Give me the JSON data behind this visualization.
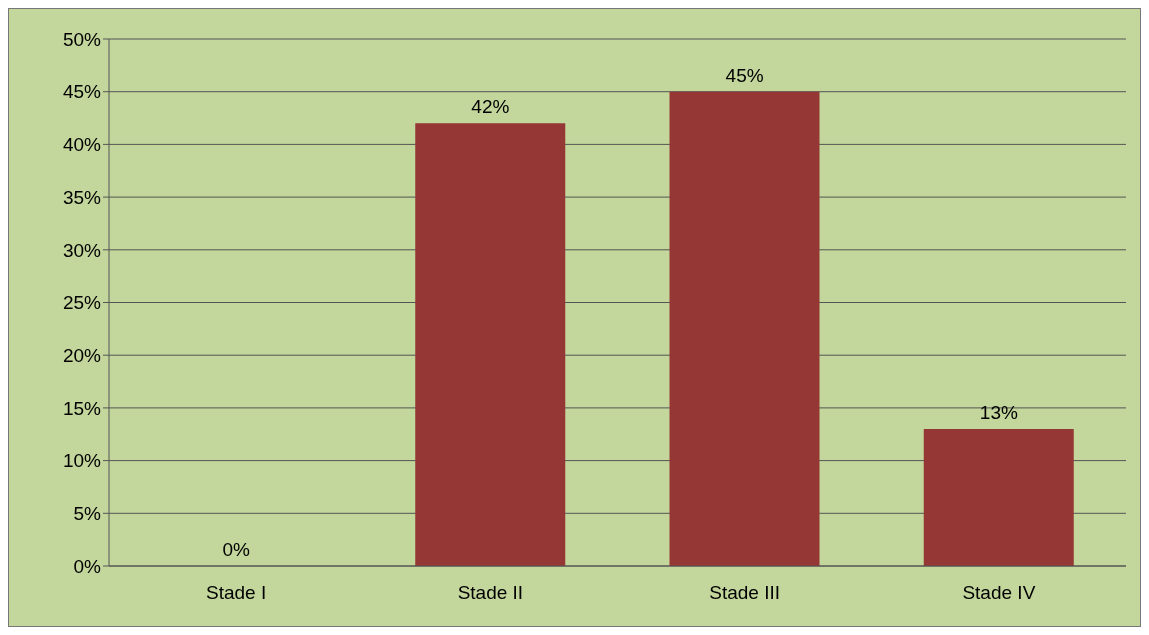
{
  "chart_data": {
    "type": "bar",
    "categories": [
      "Stade I",
      "Stade II",
      "Stade III",
      "Stade IV"
    ],
    "values": [
      0,
      42,
      45,
      13
    ],
    "colors": [
      "#953735",
      "#953735",
      "#953735",
      "#953735"
    ],
    "value_labels": [
      "0%",
      "42%",
      "45%",
      "13%"
    ],
    "ylim": [
      0,
      50
    ],
    "yticks": [
      {
        "value": 0,
        "label": "0%"
      },
      {
        "value": 5,
        "label": "5%"
      },
      {
        "value": 10,
        "label": "10%"
      },
      {
        "value": 15,
        "label": "15%"
      },
      {
        "value": 20,
        "label": "20%"
      },
      {
        "value": 25,
        "label": "25%"
      },
      {
        "value": 30,
        "label": "30%"
      },
      {
        "value": 35,
        "label": "35%"
      },
      {
        "value": 40,
        "label": "40%"
      },
      {
        "value": 45,
        "label": "45%"
      },
      {
        "value": 50,
        "label": "50%"
      }
    ],
    "grid": "y",
    "legend": false
  }
}
